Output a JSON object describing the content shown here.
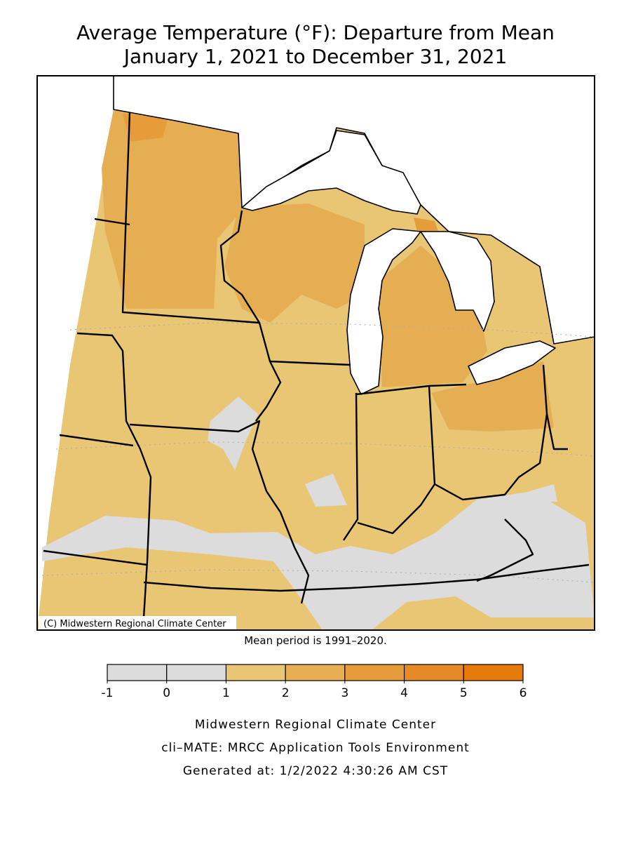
{
  "header": {
    "title": "Average Temperature (°F): Departure from Mean",
    "subtitle": "January 1, 2021 to December 31, 2021"
  },
  "map": {
    "credit": "(C) Midwestern Regional Climate Center",
    "note": "Mean period is 1991–2020.",
    "legend": {
      "ticks": [
        -1,
        0,
        1,
        2,
        3,
        4,
        5,
        6
      ],
      "colors": [
        "#dcdcdc",
        "#dcdcdc",
        "#e8c674",
        "#e6ae52",
        "#e79c3c",
        "#e68a28",
        "#e67a0a"
      ]
    }
  },
  "footer": {
    "lines": [
      "Midwestern Regional Climate Center",
      "cli–MATE: MRCC Application Tools Environment",
      "Generated at: 1/2/2022 4:30:26 AM CST"
    ]
  }
}
